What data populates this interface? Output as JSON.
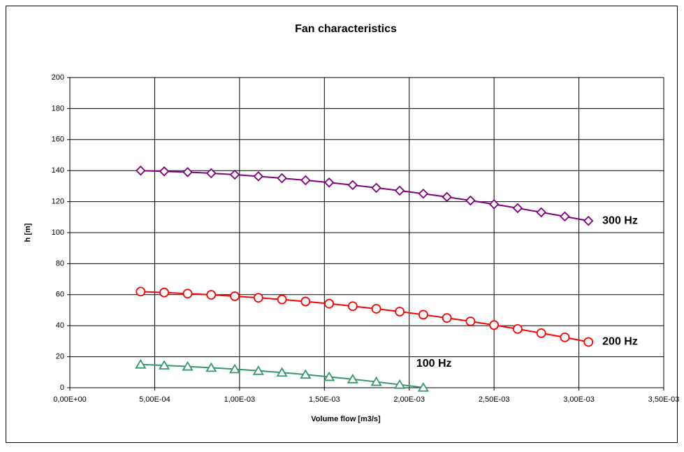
{
  "chart_data": {
    "type": "line",
    "title": "Fan characteristics",
    "x_label": "Volume flow [m3/s]",
    "y_label": "h [m]",
    "x": [
      0.000417,
      0.000556,
      0.000694,
      0.000833,
      0.000972,
      0.001111,
      0.00125,
      0.001389,
      0.001528,
      0.001667,
      0.001806,
      0.001944,
      0.002083,
      0.002222,
      0.002361,
      0.0025,
      0.002639,
      0.002778,
      0.002917,
      0.003056
    ],
    "series": [
      {
        "name": "300 Hz",
        "color": "#800080",
        "marker": "diamond",
        "values": [
          140,
          139.5,
          139,
          138.3,
          137.4,
          136.3,
          135.1,
          133.8,
          132.3,
          130.7,
          128.9,
          127.1,
          125.1,
          123,
          120.7,
          118.3,
          115.8,
          113.1,
          110.4,
          107.6
        ]
      },
      {
        "name": "200 Hz",
        "color": "#ff0000",
        "marker": "circle",
        "values": [
          62,
          61.4,
          60.7,
          59.9,
          59,
          58,
          56.9,
          55.6,
          54.2,
          52.6,
          50.9,
          49.1,
          47.1,
          45,
          42.8,
          40.4,
          37.9,
          35.2,
          32.5,
          29.5
        ]
      },
      {
        "name": "100 Hz",
        "color": "#339966",
        "marker": "triangle",
        "values": [
          15,
          14.4,
          13.7,
          12.9,
          12,
          10.9,
          9.8,
          8.5,
          7,
          5.5,
          3.8,
          2,
          0.1,
          null,
          null,
          null,
          null,
          null,
          null,
          null
        ]
      }
    ],
    "xlim": [
      0,
      0.0035
    ],
    "xticks": [
      {
        "value": 0,
        "label": "0,00E+00"
      },
      {
        "value": 0.0005,
        "label": "5,00E-04"
      },
      {
        "value": 0.001,
        "label": "1,00E-03"
      },
      {
        "value": 0.0015,
        "label": "1,50E-03"
      },
      {
        "value": 0.002,
        "label": "2,00E-03"
      },
      {
        "value": 0.0025,
        "label": "2,50E-03"
      },
      {
        "value": 0.003,
        "label": "3,00E-03"
      },
      {
        "value": 0.0035,
        "label": "3,50E-03"
      }
    ],
    "ylim": [
      0,
      200
    ],
    "yticks": [
      0,
      20,
      40,
      60,
      80,
      100,
      120,
      140,
      160,
      180,
      200
    ],
    "grid": true
  }
}
